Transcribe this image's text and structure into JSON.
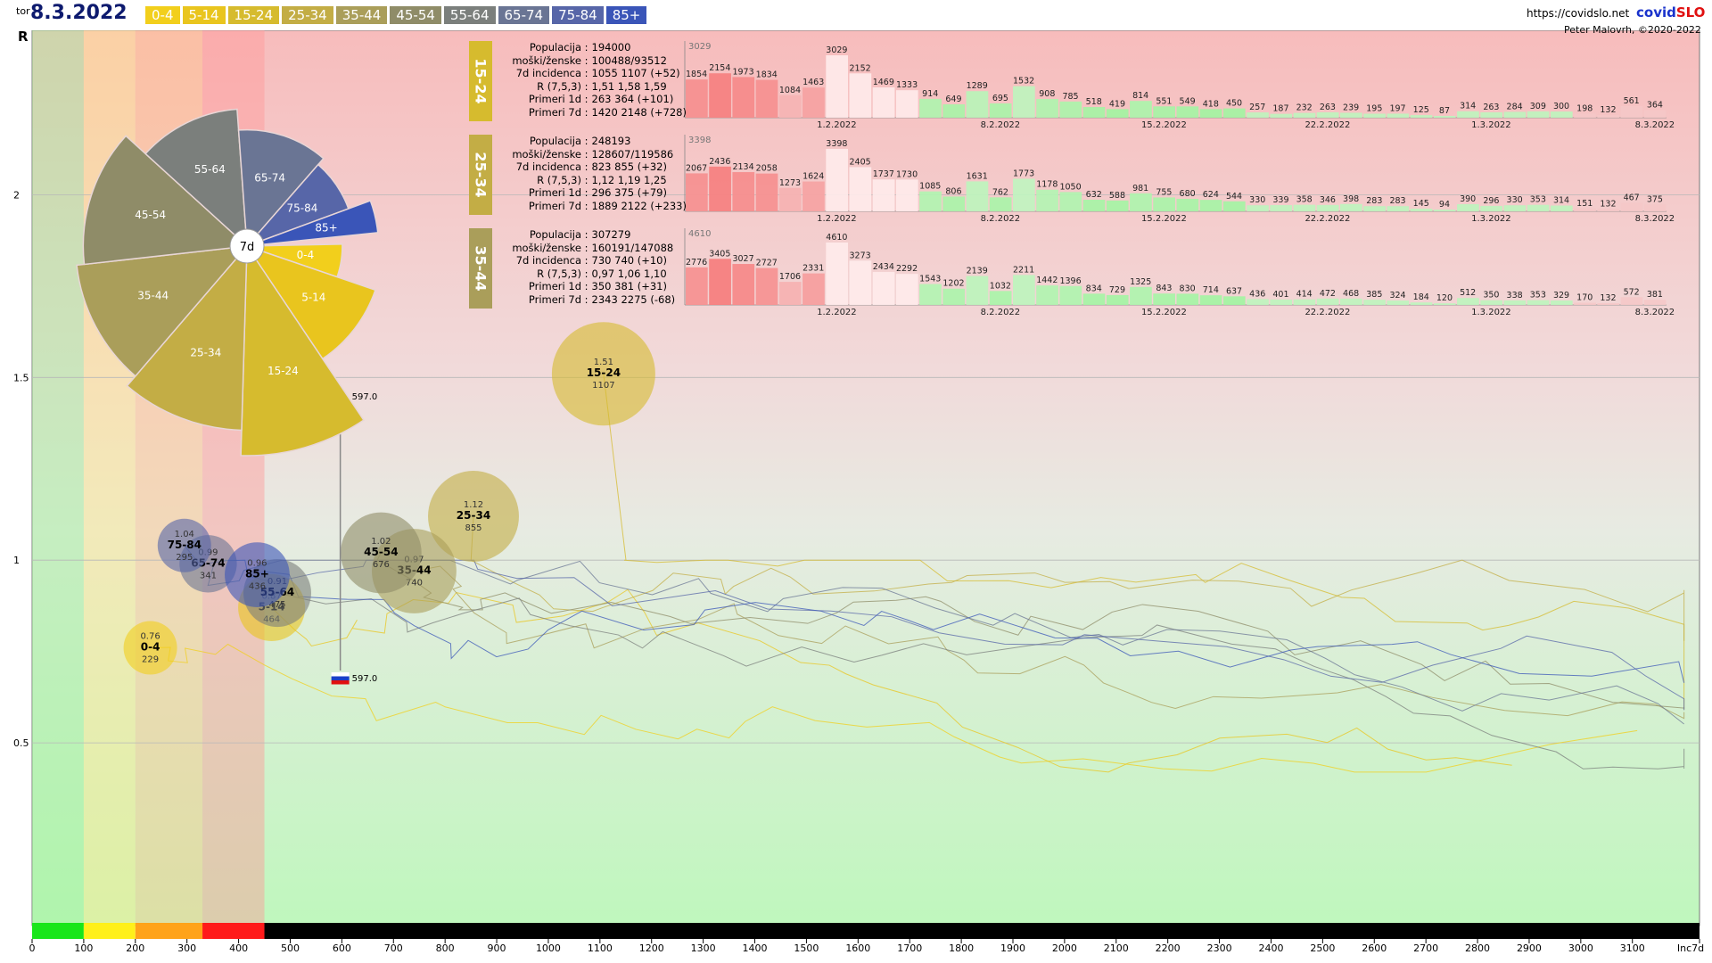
{
  "header": {
    "weekday": "tor",
    "date": "8.3.2022",
    "url": "https://covidslo.net",
    "brand_a": "covid",
    "brand_b": "SLO",
    "author": "Peter Malovrh, ©2020-2022"
  },
  "legend": [
    {
      "label": "0-4",
      "color": "#f2cf1c"
    },
    {
      "label": "5-14",
      "color": "#e9c51e"
    },
    {
      "label": "15-24",
      "color": "#d6bb2e"
    },
    {
      "label": "25-34",
      "color": "#c3ad45"
    },
    {
      "label": "35-44",
      "color": "#aa9e5a"
    },
    {
      "label": "45-54",
      "color": "#8f8c68"
    },
    {
      "label": "55-64",
      "color": "#7b7f7c"
    },
    {
      "label": "65-74",
      "color": "#6a7594"
    },
    {
      "label": "75-84",
      "color": "#5766a8"
    },
    {
      "label": "85+",
      "color": "#3a55b8"
    }
  ],
  "chart_data": {
    "type": "scatter",
    "ylabel": "R",
    "xlim": [
      0,
      3230
    ],
    "ylim": [
      0,
      2.45
    ],
    "x_ticks": [
      "0",
      "100",
      "200",
      "300",
      "400",
      "500",
      "600",
      "700",
      "800",
      "900",
      "1000",
      "1100",
      "1200",
      "1300",
      "1400",
      "1500",
      "1600",
      "1700",
      "1800",
      "1900",
      "2000",
      "2100",
      "2200",
      "2300",
      "2400",
      "2500",
      "2600",
      "2700",
      "2800",
      "2900",
      "3000",
      "3100",
      "Inc7d"
    ],
    "y_ticks": [
      "0.5",
      "1",
      "1.5",
      "2"
    ],
    "bubbles": [
      {
        "name": "0-4",
        "r": 0.76,
        "inc": 229,
        "color": "#f2cf1c"
      },
      {
        "name": "5-14",
        "r": 0.87,
        "inc": 464,
        "color": "#e9c51e"
      },
      {
        "name": "15-24",
        "r": 1.51,
        "inc": 1107,
        "color": "#d6bb2e"
      },
      {
        "name": "25-34",
        "r": 1.12,
        "inc": 855,
        "color": "#c3ad45"
      },
      {
        "name": "35-44",
        "r": 0.97,
        "inc": 740,
        "color": "#aa9e5a"
      },
      {
        "name": "45-54",
        "r": 1.02,
        "inc": 676,
        "color": "#8f8c68"
      },
      {
        "name": "55-64",
        "r": 0.91,
        "inc": 475,
        "color": "#7b7f7c"
      },
      {
        "name": "65-74",
        "r": 0.99,
        "inc": 341,
        "color": "#6a7594"
      },
      {
        "name": "75-84",
        "r": 1.04,
        "inc": 295,
        "color": "#5766a8"
      },
      {
        "name": "85+",
        "r": 0.96,
        "inc": 436,
        "color": "#3a55b8"
      }
    ],
    "slovenia_marker": {
      "value": "597.0",
      "inc": 597
    },
    "rose": {
      "center_label": "7d",
      "segments": [
        {
          "label": "0-4",
          "value": 229,
          "color": "#f2cf1c"
        },
        {
          "label": "5-14",
          "value": 464,
          "color": "#e9c51e"
        },
        {
          "label": "15-24",
          "value": 1107,
          "color": "#d6bb2e"
        },
        {
          "label": "25-34",
          "value": 855,
          "color": "#c3ad45"
        },
        {
          "label": "35-44",
          "value": 740,
          "color": "#aa9e5a"
        },
        {
          "label": "45-54",
          "value": 676,
          "color": "#8f8c68"
        },
        {
          "label": "55-64",
          "value": 475,
          "color": "#7b7f7c"
        },
        {
          "label": "65-74",
          "value": 341,
          "color": "#6a7594"
        },
        {
          "label": "75-84",
          "value": 295,
          "color": "#5766a8"
        },
        {
          "label": "85+",
          "value": 436,
          "color": "#3a55b8"
        }
      ]
    },
    "panels": [
      {
        "group": "15-24",
        "color": "#d6bb2e",
        "info": [
          {
            "k": "Populacija",
            "v": "194000"
          },
          {
            "k": "moški/ženske",
            "v": "100488/93512"
          },
          {
            "k": "7d incidenca",
            "v": "1055 1107 (+52)"
          },
          {
            "k": "R (7,5,3)",
            "v": "1,51 1,58 1,59"
          },
          {
            "k": "Primeri 1d",
            "v": "263 364 (+101)"
          },
          {
            "k": "Primeri 7d",
            "v": "1420 2148 (+728)"
          }
        ],
        "max_label": "3029",
        "daily": [
          1854,
          2154,
          1973,
          1834,
          1084,
          1463,
          3029,
          2152,
          1469,
          1333,
          914,
          649,
          1289,
          695,
          1532,
          908,
          785,
          518,
          419,
          814,
          551,
          549,
          418,
          450,
          257,
          187,
          232,
          263,
          239,
          195,
          197,
          125,
          87,
          314,
          263,
          284,
          309,
          300,
          198,
          132,
          561,
          364
        ],
        "dates": [
          "1.2.2022",
          "8.2.2022",
          "15.2.2022",
          "22.2.2022",
          "1.3.2022",
          "8.3.2022"
        ]
      },
      {
        "group": "25-34",
        "color": "#c3ad45",
        "info": [
          {
            "k": "Populacija",
            "v": "248193"
          },
          {
            "k": "moški/ženske",
            "v": "128607/119586"
          },
          {
            "k": "7d incidenca",
            "v": "823 855 (+32)"
          },
          {
            "k": "R (7,5,3)",
            "v": "1,12 1,19 1,25"
          },
          {
            "k": "Primeri 1d",
            "v": "296 375 (+79)"
          },
          {
            "k": "Primeri 7d",
            "v": "1889 2122 (+233)"
          }
        ],
        "max_label": "3398",
        "daily": [
          2067,
          2436,
          2134,
          2058,
          1273,
          1624,
          3398,
          2405,
          1737,
          1730,
          1085,
          806,
          1631,
          762,
          1773,
          1178,
          1050,
          632,
          588,
          981,
          755,
          680,
          624,
          544,
          330,
          339,
          358,
          346,
          398,
          283,
          283,
          145,
          94,
          390,
          296,
          330,
          353,
          314,
          151,
          132,
          467,
          375
        ],
        "dates": [
          "1.2.2022",
          "8.2.2022",
          "15.2.2022",
          "22.2.2022",
          "1.3.2022",
          "8.3.2022"
        ]
      },
      {
        "group": "35-44",
        "color": "#aa9e5a",
        "info": [
          {
            "k": "Populacija",
            "v": "307279"
          },
          {
            "k": "moški/ženske",
            "v": "160191/147088"
          },
          {
            "k": "7d incidenca",
            "v": "730 740 (+10)"
          },
          {
            "k": "R (7,5,3)",
            "v": "0,97 1,06 1,10"
          },
          {
            "k": "Primeri 1d",
            "v": "350 381 (+31)"
          },
          {
            "k": "Primeri 7d",
            "v": "2343 2275 (-68)"
          }
        ],
        "max_label": "4610",
        "daily": [
          2776,
          3405,
          3027,
          2727,
          1706,
          2331,
          4610,
          3273,
          2434,
          2292,
          1543,
          1202,
          2139,
          1032,
          2211,
          1442,
          1396,
          834,
          729,
          1325,
          843,
          830,
          714,
          637,
          436,
          401,
          414,
          472,
          468,
          385,
          324,
          184,
          120,
          512,
          350,
          338,
          353,
          329,
          170,
          132,
          572,
          381
        ],
        "dates": [
          "1.2.2022",
          "8.2.2022",
          "15.2.2022",
          "22.2.2022",
          "1.3.2022",
          "8.3.2022"
        ]
      }
    ]
  }
}
